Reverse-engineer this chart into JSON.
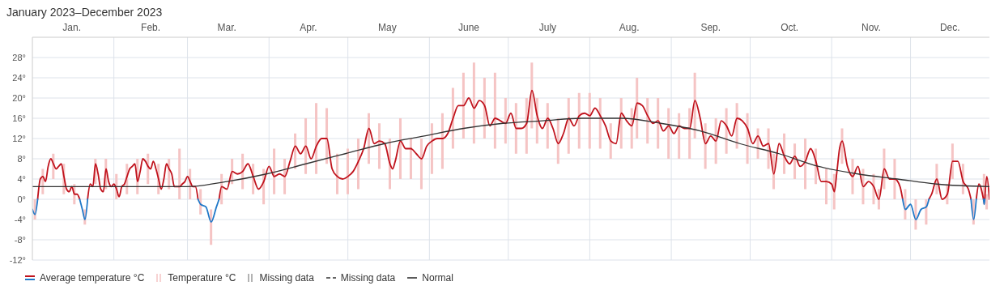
{
  "chart_data": {
    "type": "line",
    "title": "January 2023–December 2023",
    "xlim": [
      "2023-01-01",
      "2023-12-31"
    ],
    "xticks": [
      {
        "value": "2023-01-16",
        "label": "Jan."
      },
      {
        "value": "2023-02-01",
        "label": null
      },
      {
        "value": "2023-02-15",
        "label": "Feb."
      },
      {
        "value": "2023-03-01",
        "label": null
      },
      {
        "value": "2023-03-16",
        "label": "Mar."
      },
      {
        "value": "2023-04-01",
        "label": null
      },
      {
        "value": "2023-04-16",
        "label": "Apr."
      },
      {
        "value": "2023-05-01",
        "label": null
      },
      {
        "value": "2023-05-16",
        "label": "May"
      },
      {
        "value": "2023-06-01",
        "label": null
      },
      {
        "value": "2023-06-16",
        "label": "June"
      },
      {
        "value": "2023-07-01",
        "label": null
      },
      {
        "value": "2023-07-16",
        "label": "July"
      },
      {
        "value": "2023-08-01",
        "label": null
      },
      {
        "value": "2023-08-16",
        "label": "Aug."
      },
      {
        "value": "2023-09-01",
        "label": null
      },
      {
        "value": "2023-09-16",
        "label": "Sep."
      },
      {
        "value": "2023-10-01",
        "label": null
      },
      {
        "value": "2023-10-16",
        "label": "Oct."
      },
      {
        "value": "2023-11-01",
        "label": null
      },
      {
        "value": "2023-11-16",
        "label": "Nov."
      },
      {
        "value": "2023-12-01",
        "label": null
      },
      {
        "value": "2023-12-16",
        "label": "Dec."
      }
    ],
    "ylim": [
      -12,
      32
    ],
    "yticks": [
      {
        "value": -12,
        "label": "-12°"
      },
      {
        "value": -8,
        "label": "-8°"
      },
      {
        "value": -4,
        "label": "-4°"
      },
      {
        "value": 0,
        "label": "0°"
      },
      {
        "value": 4,
        "label": "4°"
      },
      {
        "value": 8,
        "label": "8°"
      },
      {
        "value": 12,
        "label": "12°"
      },
      {
        "value": 16,
        "label": "16°"
      },
      {
        "value": 20,
        "label": "20°"
      },
      {
        "value": 24,
        "label": "24°"
      },
      {
        "value": 28,
        "label": "28°"
      }
    ],
    "grid": true,
    "legend": "bottom left",
    "series": [
      {
        "name": "Average temperature °C",
        "color": "#c0121c",
        "x": [
          "2023-01-03",
          "2023-01-04",
          "2023-01-05",
          "2023-01-06",
          "2023-01-07",
          "2023-01-08",
          "2023-01-09",
          "2023-01-10",
          "2023-01-11",
          "2023-01-12",
          "2023-01-13",
          "2023-01-14",
          "2023-01-15",
          "2023-01-16",
          "2023-01-17",
          "2023-01-18",
          "2023-01-19",
          "2023-01-20",
          "2023-01-21",
          "2023-01-22",
          "2023-01-23",
          "2023-01-24",
          "2023-01-25",
          "2023-01-26",
          "2023-01-27",
          "2023-01-28",
          "2023-01-29",
          "2023-01-30",
          "2023-01-31",
          "2023-02-01",
          "2023-02-02",
          "2023-02-03",
          "2023-02-04",
          "2023-02-05",
          "2023-02-06",
          "2023-02-07",
          "2023-02-08",
          "2023-02-09",
          "2023-02-10",
          "2023-02-11",
          "2023-02-12",
          "2023-02-13",
          "2023-02-14",
          "2023-02-15",
          "2023-02-16",
          "2023-02-17",
          "2023-02-18",
          "2023-02-19",
          "2023-02-20",
          "2023-02-21",
          "2023-02-22",
          "2023-02-23",
          "2023-02-24",
          "2023-02-25",
          "2023-02-26",
          "2023-02-27",
          "2023-02-28",
          "2023-03-01",
          "2023-03-02",
          "2023-03-03",
          "2023-03-04",
          "2023-03-05",
          "2023-03-06",
          "2023-03-08",
          "2023-03-10",
          "2023-03-12",
          "2023-03-13",
          "2023-03-14",
          "2023-03-16",
          "2023-03-18",
          "2023-03-20",
          "2023-03-22",
          "2023-03-24",
          "2023-03-26",
          "2023-03-28",
          "2023-03-30",
          "2023-04-01",
          "2023-04-03",
          "2023-04-05",
          "2023-04-07",
          "2023-04-09",
          "2023-04-11",
          "2023-04-13",
          "2023-04-15",
          "2023-04-17",
          "2023-04-19",
          "2023-04-21",
          "2023-04-23",
          "2023-04-25",
          "2023-04-27",
          "2023-04-29",
          "2023-05-01",
          "2023-05-03",
          "2023-05-05",
          "2023-05-07",
          "2023-05-09",
          "2023-05-11",
          "2023-05-13",
          "2023-05-15",
          "2023-05-17",
          "2023-05-18",
          "2023-05-19",
          "2023-05-21",
          "2023-05-23",
          "2023-05-25",
          "2023-05-27",
          "2023-05-29",
          "2023-05-31",
          "2023-06-02",
          "2023-06-04",
          "2023-06-06",
          "2023-06-08",
          "2023-06-10",
          "2023-06-12",
          "2023-06-14",
          "2023-06-16",
          "2023-06-18",
          "2023-06-20",
          "2023-06-22",
          "2023-06-24",
          "2023-06-26",
          "2023-06-28",
          "2023-06-30",
          "2023-07-02",
          "2023-07-04",
          "2023-07-06",
          "2023-07-08",
          "2023-07-10",
          "2023-07-12",
          "2023-07-14",
          "2023-07-16",
          "2023-07-18",
          "2023-07-20",
          "2023-07-22",
          "2023-07-24",
          "2023-07-26",
          "2023-07-28",
          "2023-07-30",
          "2023-08-01",
          "2023-08-03",
          "2023-08-05",
          "2023-08-07",
          "2023-08-09",
          "2023-08-11",
          "2023-08-13",
          "2023-08-15",
          "2023-08-17",
          "2023-08-19",
          "2023-08-21",
          "2023-08-23",
          "2023-08-25",
          "2023-08-27",
          "2023-08-29",
          "2023-08-31",
          "2023-09-02",
          "2023-09-04",
          "2023-09-06",
          "2023-09-08",
          "2023-09-10",
          "2023-09-12",
          "2023-09-14",
          "2023-09-16",
          "2023-09-18",
          "2023-09-20",
          "2023-09-22",
          "2023-09-24",
          "2023-09-26",
          "2023-09-28",
          "2023-09-30",
          "2023-10-02",
          "2023-10-04",
          "2023-10-06",
          "2023-10-08",
          "2023-10-10",
          "2023-10-12",
          "2023-10-14",
          "2023-10-16",
          "2023-10-18",
          "2023-10-20",
          "2023-10-22",
          "2023-10-24",
          "2023-10-26",
          "2023-10-28",
          "2023-10-30",
          "2023-11-01",
          "2023-11-02",
          "2023-11-03",
          "2023-11-04",
          "2023-11-05",
          "2023-11-07",
          "2023-11-09",
          "2023-11-11",
          "2023-11-13",
          "2023-11-15",
          "2023-11-17",
          "2023-11-19",
          "2023-11-21",
          "2023-11-23",
          "2023-11-25",
          "2023-11-27",
          "2023-11-28",
          "2023-11-29",
          "2023-12-01",
          "2023-12-03",
          "2023-12-05",
          "2023-12-07",
          "2023-12-08",
          "2023-12-09",
          "2023-12-11",
          "2023-12-13",
          "2023-12-15",
          "2023-12-17",
          "2023-12-19",
          "2023-12-21",
          "2023-12-23",
          "2023-12-24",
          "2023-12-25",
          "2023-12-26",
          "2023-12-27",
          "2023-12-28T18:00",
          "2023-12-29",
          "2023-12-29T06:00",
          "2023-12-30",
          "2023-12-31"
        ],
        "values": [
          0,
          4,
          4.5,
          3.5,
          6.5,
          8,
          7,
          6,
          6.5,
          7,
          4.5,
          2,
          1.5,
          2.5,
          1,
          1,
          0,
          null,
          null,
          0,
          3,
          2.5,
          7,
          5,
          2,
          1.5,
          6,
          3.5,
          2.5,
          3,
          2,
          0.5,
          2.5,
          3,
          4.5,
          6,
          6.5,
          7,
          3.5,
          5.5,
          8,
          7.5,
          6.5,
          6,
          7.5,
          6,
          4,
          2,
          4,
          7,
          6,
          5,
          2.5,
          2.5,
          2.5,
          3,
          3.5,
          4.5,
          3.5,
          2.5,
          2.5,
          0,
          null,
          null,
          null,
          null,
          0,
          2.5,
          2,
          5.5,
          5,
          5.5,
          7,
          4.5,
          2,
          3.5,
          6.5,
          4.5,
          5,
          4.5,
          7.5,
          10.5,
          9,
          10.5,
          8,
          10.5,
          12,
          12,
          6,
          4.5,
          4,
          4.5,
          5.5,
          7.5,
          10,
          14,
          11,
          11.5,
          11,
          7,
          6,
          7.5,
          11.5,
          10,
          10,
          9,
          8,
          10.5,
          11.5,
          12,
          12,
          13,
          16,
          18.5,
          18.5,
          20,
          18,
          19.5,
          18.5,
          14.5,
          16,
          15.5,
          15,
          17,
          14,
          14,
          15,
          21.5,
          16.5,
          14,
          16,
          14,
          11,
          13,
          16,
          14.5,
          16.5,
          17,
          16.5,
          18,
          16.5,
          14.5,
          11.5,
          11,
          17,
          15.5,
          14.5,
          19,
          18.5,
          16.5,
          15,
          15.5,
          13.5,
          14.5,
          13,
          14.5,
          14,
          14,
          19.5,
          16,
          11,
          12.5,
          11.5,
          15.5,
          14.5,
          12.5,
          16,
          15.5,
          14,
          11,
          12.5,
          10.5,
          11,
          5,
          11,
          8.5,
          7,
          8.5,
          6.5,
          7.5,
          10,
          7.5,
          3.5,
          3.5,
          3,
          1.5,
          5.5,
          10,
          11.5,
          6.5,
          4.5,
          6.5,
          2.5,
          3.5,
          2.5,
          0,
          6,
          4,
          4,
          2.5,
          0,
          null,
          null,
          null,
          null,
          null,
          0,
          1,
          4,
          0,
          1,
          7.5,
          7.5,
          3.5,
          2,
          0,
          null,
          0,
          3,
          0,
          null,
          0,
          4.5,
          0
        ]
      },
      {
        "color": "#1f78c8",
        "x": [
          "2023-01-01",
          "2023-01-02",
          "2023-01-03",
          "2023-01-10",
          "2023-01-19",
          "2023-01-20",
          "2023-01-21",
          "2023-01-22",
          "2023-02-15",
          "2023-03-05",
          "2023-03-06",
          "2023-03-08",
          "2023-03-10",
          "2023-03-12",
          "2023-03-13",
          "2023-06-01",
          "2023-11-28",
          "2023-11-29",
          "2023-12-01",
          "2023-12-03",
          "2023-12-05",
          "2023-12-07",
          "2023-12-08",
          "2023-12-10",
          "2023-12-24",
          "2023-12-25",
          "2023-12-26",
          "2023-12-27",
          "2023-12-28T18:00",
          "2023-12-29",
          "2023-12-29T06:00"
        ],
        "values": [
          -2,
          -3,
          0,
          null,
          0,
          -2,
          -4,
          0,
          null,
          0,
          -1,
          -1.5,
          -4.5,
          -1.5,
          0,
          null,
          0,
          -2,
          -1,
          -4,
          -2,
          -1.5,
          0,
          null,
          0,
          -4,
          0,
          null,
          0,
          -1,
          0
        ]
      },
      {
        "name": "Temperature °C",
        "type": "bar",
        "color": "#f5c4c4",
        "x": [
          "2023-01-02",
          "2023-01-05",
          "2023-01-09",
          "2023-01-13",
          "2023-01-17",
          "2023-01-21",
          "2023-01-25",
          "2023-01-29",
          "2023-02-02",
          "2023-02-06",
          "2023-02-10",
          "2023-02-14",
          "2023-02-18",
          "2023-02-22",
          "2023-02-26",
          "2023-03-02",
          "2023-03-06",
          "2023-03-10",
          "2023-03-14",
          "2023-03-18",
          "2023-03-22",
          "2023-03-26",
          "2023-03-30",
          "2023-04-03",
          "2023-04-07",
          "2023-04-11",
          "2023-04-15",
          "2023-04-19",
          "2023-04-23",
          "2023-04-27",
          "2023-05-01",
          "2023-05-05",
          "2023-05-09",
          "2023-05-13",
          "2023-05-17",
          "2023-05-21",
          "2023-05-25",
          "2023-05-29",
          "2023-06-02",
          "2023-06-06",
          "2023-06-10",
          "2023-06-14",
          "2023-06-18",
          "2023-06-22",
          "2023-06-26",
          "2023-06-30",
          "2023-07-04",
          "2023-07-08",
          "2023-07-10",
          "2023-07-12",
          "2023-07-16",
          "2023-07-20",
          "2023-07-24",
          "2023-07-28",
          "2023-08-01",
          "2023-08-05",
          "2023-08-09",
          "2023-08-13",
          "2023-08-17",
          "2023-08-19",
          "2023-08-23",
          "2023-08-27",
          "2023-08-31",
          "2023-09-04",
          "2023-09-08",
          "2023-09-10",
          "2023-09-14",
          "2023-09-18",
          "2023-09-22",
          "2023-09-26",
          "2023-09-30",
          "2023-10-04",
          "2023-10-08",
          "2023-10-10",
          "2023-10-14",
          "2023-10-18",
          "2023-10-22",
          "2023-10-26",
          "2023-10-30",
          "2023-11-02",
          "2023-11-05",
          "2023-11-09",
          "2023-11-13",
          "2023-11-17",
          "2023-11-19",
          "2023-11-21",
          "2023-11-25",
          "2023-11-29",
          "2023-12-03",
          "2023-12-07",
          "2023-12-11",
          "2023-12-15",
          "2023-12-17",
          "2023-12-21",
          "2023-12-25",
          "2023-12-29",
          "2023-12-30"
        ],
        "base": [
          -4,
          1,
          4,
          1,
          -1,
          -5,
          3,
          2,
          0,
          1,
          1,
          3,
          1,
          2,
          0,
          0,
          -3,
          -9,
          -1,
          3,
          2,
          1,
          -1,
          1,
          1,
          6,
          5,
          5,
          7,
          1,
          1,
          2,
          7,
          6,
          2,
          4,
          4,
          2,
          5,
          6,
          10,
          12,
          11,
          12,
          10,
          11,
          9,
          9,
          14,
          11,
          10,
          7,
          9,
          10,
          10,
          10,
          8,
          10,
          10,
          12,
          11,
          10,
          8,
          8,
          8,
          12,
          6,
          7,
          9,
          10,
          7,
          8,
          6,
          2,
          5,
          4,
          2,
          3,
          -1,
          -2,
          7,
          1,
          -1,
          -1,
          -2,
          2,
          0,
          -4,
          -6,
          -5,
          1,
          -1,
          4,
          1,
          -5,
          -1,
          -2
        ],
        "values": [
          4,
          5,
          5,
          6,
          4,
          3,
          5,
          6,
          5,
          6,
          7,
          6,
          6,
          6,
          10,
          6,
          5,
          7,
          6,
          5,
          7,
          6,
          7,
          9,
          7,
          7,
          11,
          14,
          11,
          8,
          9,
          10,
          10,
          9,
          10,
          12,
          8,
          10,
          10,
          11,
          12,
          13,
          16,
          12,
          15,
          9,
          10,
          11,
          13,
          9,
          9,
          9,
          11,
          11,
          11,
          10,
          7,
          10,
          8,
          12,
          9,
          10,
          10,
          9,
          10,
          13,
          9,
          9,
          9,
          9,
          10,
          6,
          8,
          7,
          8,
          7,
          10,
          7,
          7,
          7,
          7,
          7,
          7,
          6,
          4,
          8,
          8,
          6,
          6,
          5,
          6,
          4,
          7,
          6,
          5,
          6,
          3
        ]
      },
      {
        "name": "Missing data",
        "type": "bar",
        "color": "#9a9a9a"
      },
      {
        "name": "Missing data",
        "color": "#333333",
        "line_style": "dashed"
      },
      {
        "name": "Normal",
        "color": "#333333",
        "x": [
          "2023-01-01",
          "2023-01-31",
          "2023-02-15",
          "2023-03-01",
          "2023-03-16",
          "2023-03-31",
          "2023-04-15",
          "2023-04-30",
          "2023-05-15",
          "2023-05-30",
          "2023-06-14",
          "2023-06-29",
          "2023-07-14",
          "2023-07-29",
          "2023-08-13",
          "2023-08-28",
          "2023-09-12",
          "2023-09-27",
          "2023-10-12",
          "2023-10-27",
          "2023-11-11",
          "2023-11-26",
          "2023-12-11",
          "2023-12-31"
        ],
        "values": [
          2.5,
          2.5,
          2.5,
          2.5,
          3.5,
          5,
          7,
          9,
          11,
          12.5,
          14,
          15,
          15.5,
          16,
          16,
          15,
          13.5,
          11,
          9,
          6.5,
          5,
          4,
          3,
          2.5
        ]
      }
    ]
  }
}
